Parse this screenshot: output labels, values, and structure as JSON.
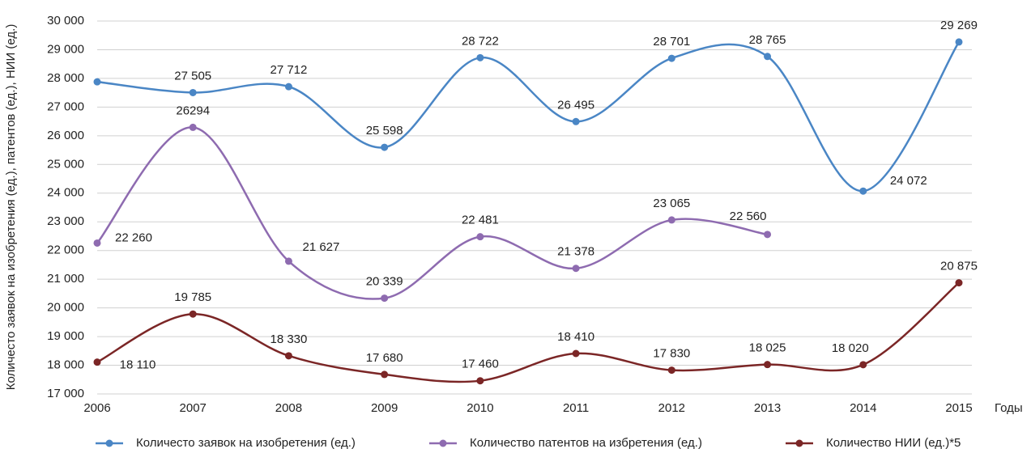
{
  "chart_data": {
    "type": "line",
    "y_label": "Количесто заявок на изобретения (ед.), патентов (ед.), НИИ (ед.)",
    "x_label": "Годы",
    "categories": [
      "2006",
      "2007",
      "2008",
      "2009",
      "2010",
      "2011",
      "2012",
      "2013",
      "2014",
      "2015"
    ],
    "ylim": [
      17000,
      30000
    ],
    "yticks": [
      {
        "value": 17000,
        "label": "17 000"
      },
      {
        "value": 18000,
        "label": "18 000"
      },
      {
        "value": 19000,
        "label": "19 000"
      },
      {
        "value": 20000,
        "label": "20 000"
      },
      {
        "value": 21000,
        "label": "21 000"
      },
      {
        "value": 22000,
        "label": "22 000"
      },
      {
        "value": 23000,
        "label": "23 000"
      },
      {
        "value": 24000,
        "label": "24 000"
      },
      {
        "value": 25000,
        "label": "25 000"
      },
      {
        "value": 26000,
        "label": "26 000"
      },
      {
        "value": 27000,
        "label": "27 000"
      },
      {
        "value": 28000,
        "label": "28 000"
      },
      {
        "value": 29000,
        "label": "29 000"
      },
      {
        "value": 30000,
        "label": "30 000"
      }
    ],
    "grid": true,
    "legend": "bottom",
    "series": [
      {
        "name": "Количесто заявок на изобретения (ед.)",
        "color": "#4a86c5",
        "values": [
          27880,
          27505,
          27712,
          25598,
          28722,
          26495,
          28701,
          28765,
          24072,
          29269
        ],
        "value_labels": [
          null,
          "27 505",
          "27 712",
          "25 598",
          "28 722",
          "26 495",
          "28 701",
          "28 765",
          "24 072",
          "29 269"
        ]
      },
      {
        "name": "Количество патентов на избретения (ед.)",
        "color": "#8e6bb0",
        "values": [
          22260,
          26294,
          21627,
          20339,
          22481,
          21378,
          23065,
          22560,
          null,
          null
        ],
        "value_labels": [
          "22 260",
          "26294",
          "21 627",
          "20 339",
          "22 481",
          "21 378",
          "23 065",
          "22 560",
          null,
          null
        ]
      },
      {
        "name": "Количество НИИ (ед.)*5",
        "color": "#7b2626",
        "values": [
          18110,
          19785,
          18330,
          17680,
          17460,
          18410,
          17830,
          18025,
          18020,
          20875
        ],
        "value_labels": [
          "18 110",
          "19 785",
          "18 330",
          "17 680",
          "17 460",
          "18 410",
          "17 830",
          "18 025",
          "18 020",
          "20 875"
        ]
      }
    ]
  }
}
